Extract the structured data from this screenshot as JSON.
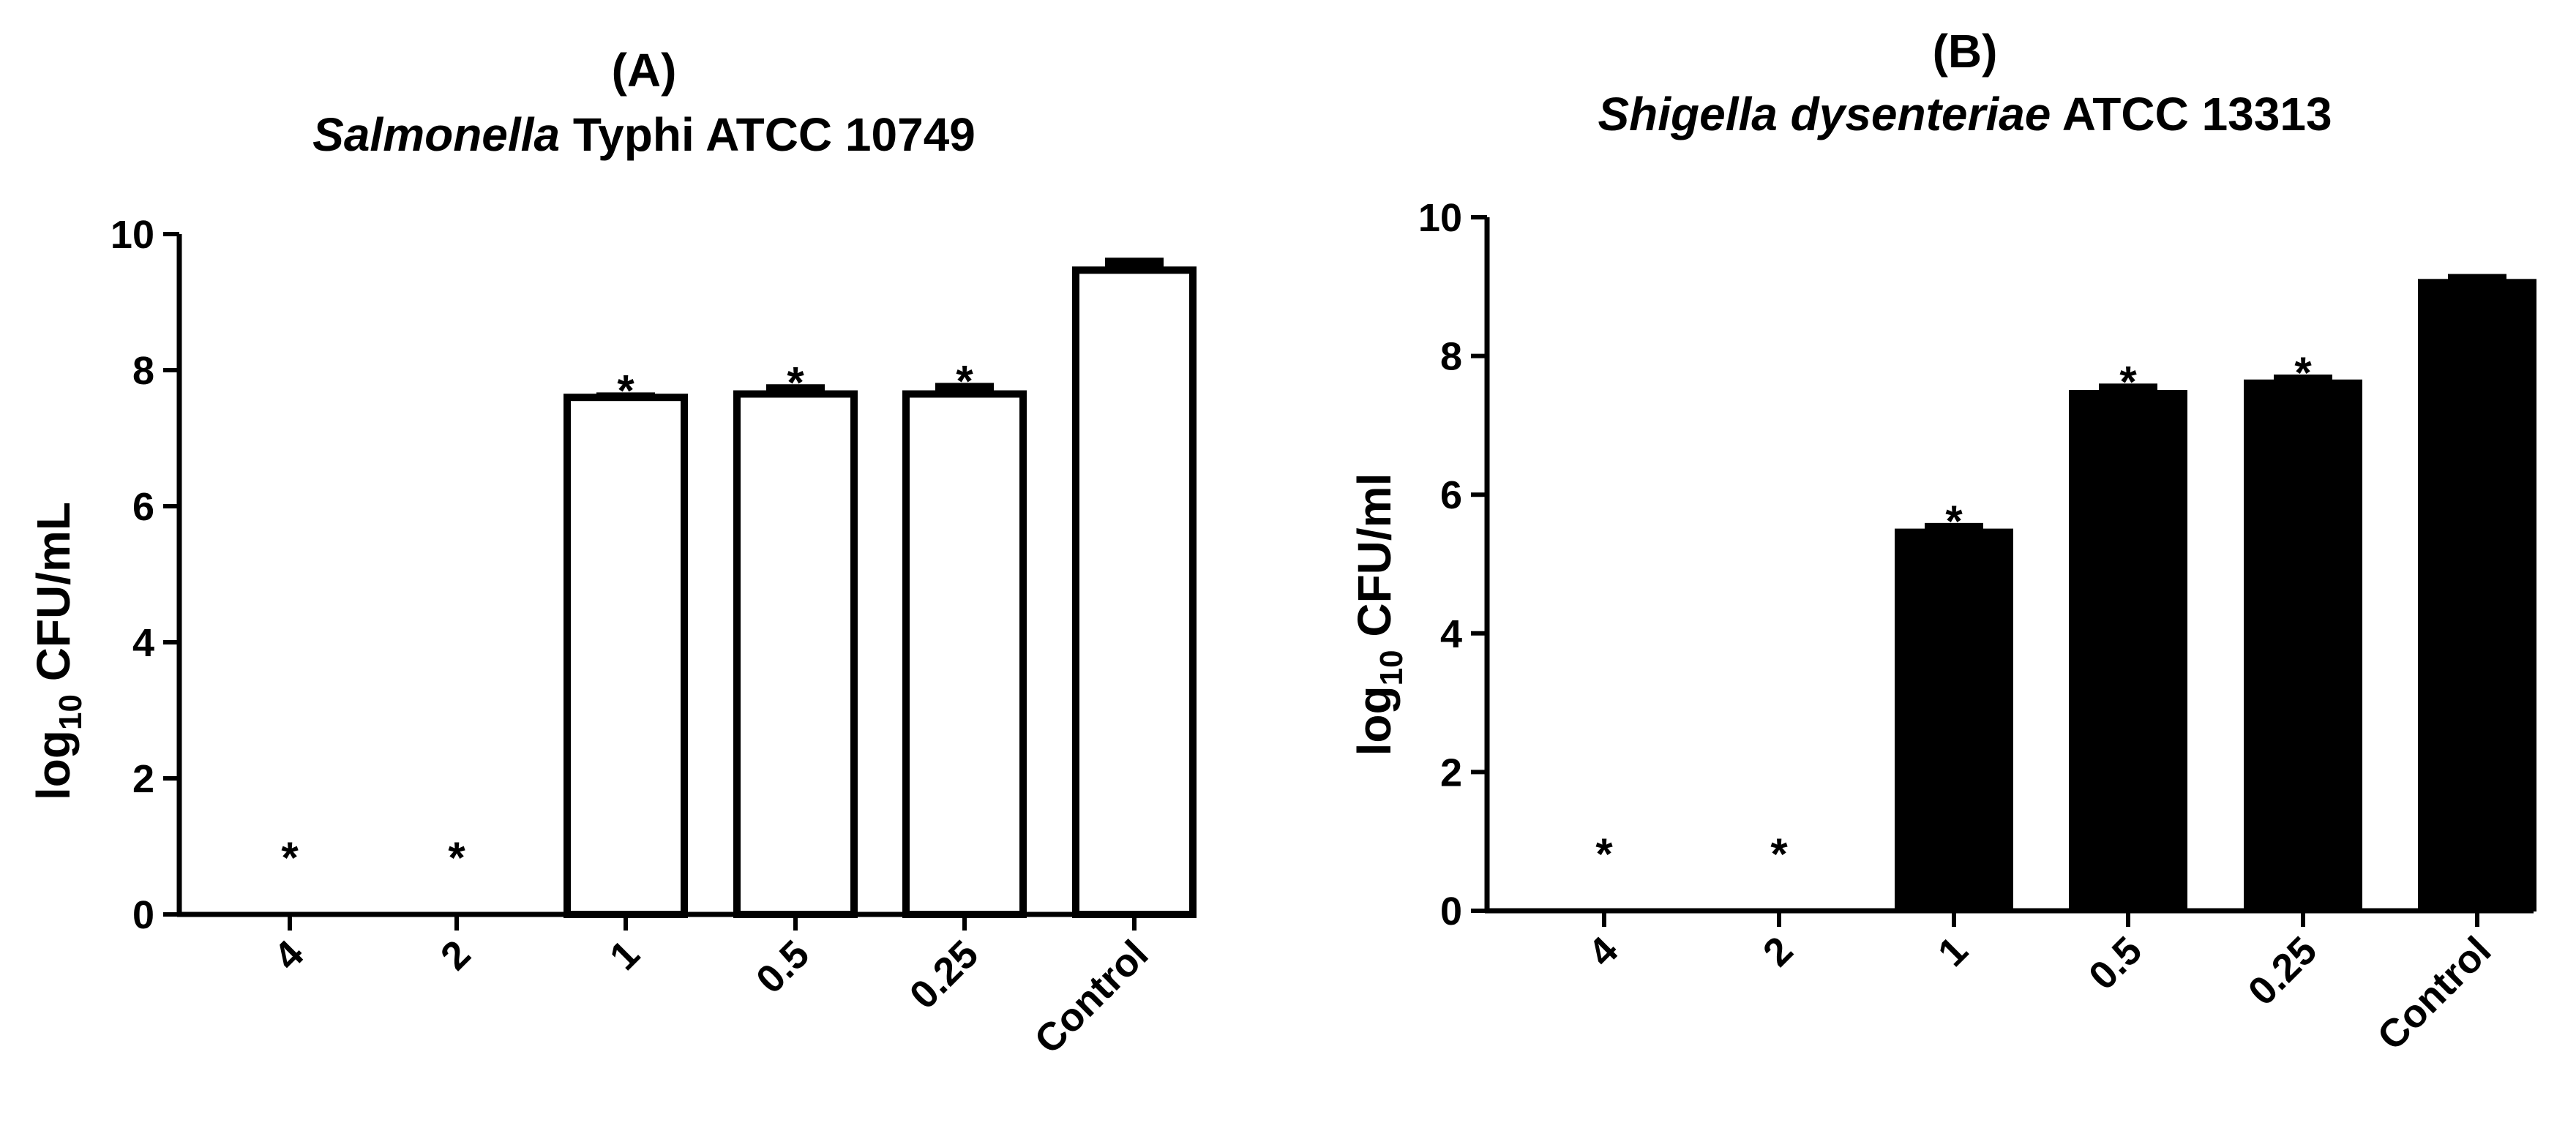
{
  "chart_data": [
    {
      "type": "bar",
      "panel_label": "(A)",
      "title_italic": "Salmonella",
      "title_rest": " Typhi ATCC 10749",
      "ylabel_main": "log",
      "ylabel_sub": "10",
      "ylabel_unit": " CFU/mL",
      "categories": [
        "4",
        "2",
        "1",
        "0.5",
        "0.25",
        "Control"
      ],
      "values": [
        0,
        0,
        7.6,
        7.65,
        7.65,
        9.47
      ],
      "errors": [
        0,
        0,
        0.03,
        0.1,
        0.12,
        0.14
      ],
      "significance": [
        "*",
        "*",
        "*",
        "*",
        "*",
        ""
      ],
      "ylim": [
        0,
        10
      ],
      "yticks": [
        "0",
        "2",
        "4",
        "6",
        "8",
        "10"
      ],
      "bar_fill": "#ffffff",
      "bar_stroke": "#000000"
    },
    {
      "type": "bar",
      "panel_label": "(B)",
      "title_italic": "Shigella dysenteriae",
      "title_rest": " ATCC 13313",
      "ylabel_main": "log",
      "ylabel_sub": "10",
      "ylabel_unit": " CFU/ml",
      "categories": [
        "4",
        "2",
        "1",
        "0.5",
        "0.25",
        "Control"
      ],
      "values": [
        0,
        0,
        5.5,
        7.5,
        7.65,
        9.1
      ],
      "errors": [
        0,
        0,
        0.05,
        0.06,
        0.04,
        0.04
      ],
      "significance": [
        "*",
        "*",
        "*",
        "*",
        "*",
        ""
      ],
      "ylim": [
        0,
        10
      ],
      "yticks": [
        "0",
        "2",
        "4",
        "6",
        "8",
        "10"
      ],
      "bar_fill": "#000000",
      "bar_stroke": "#000000"
    }
  ]
}
